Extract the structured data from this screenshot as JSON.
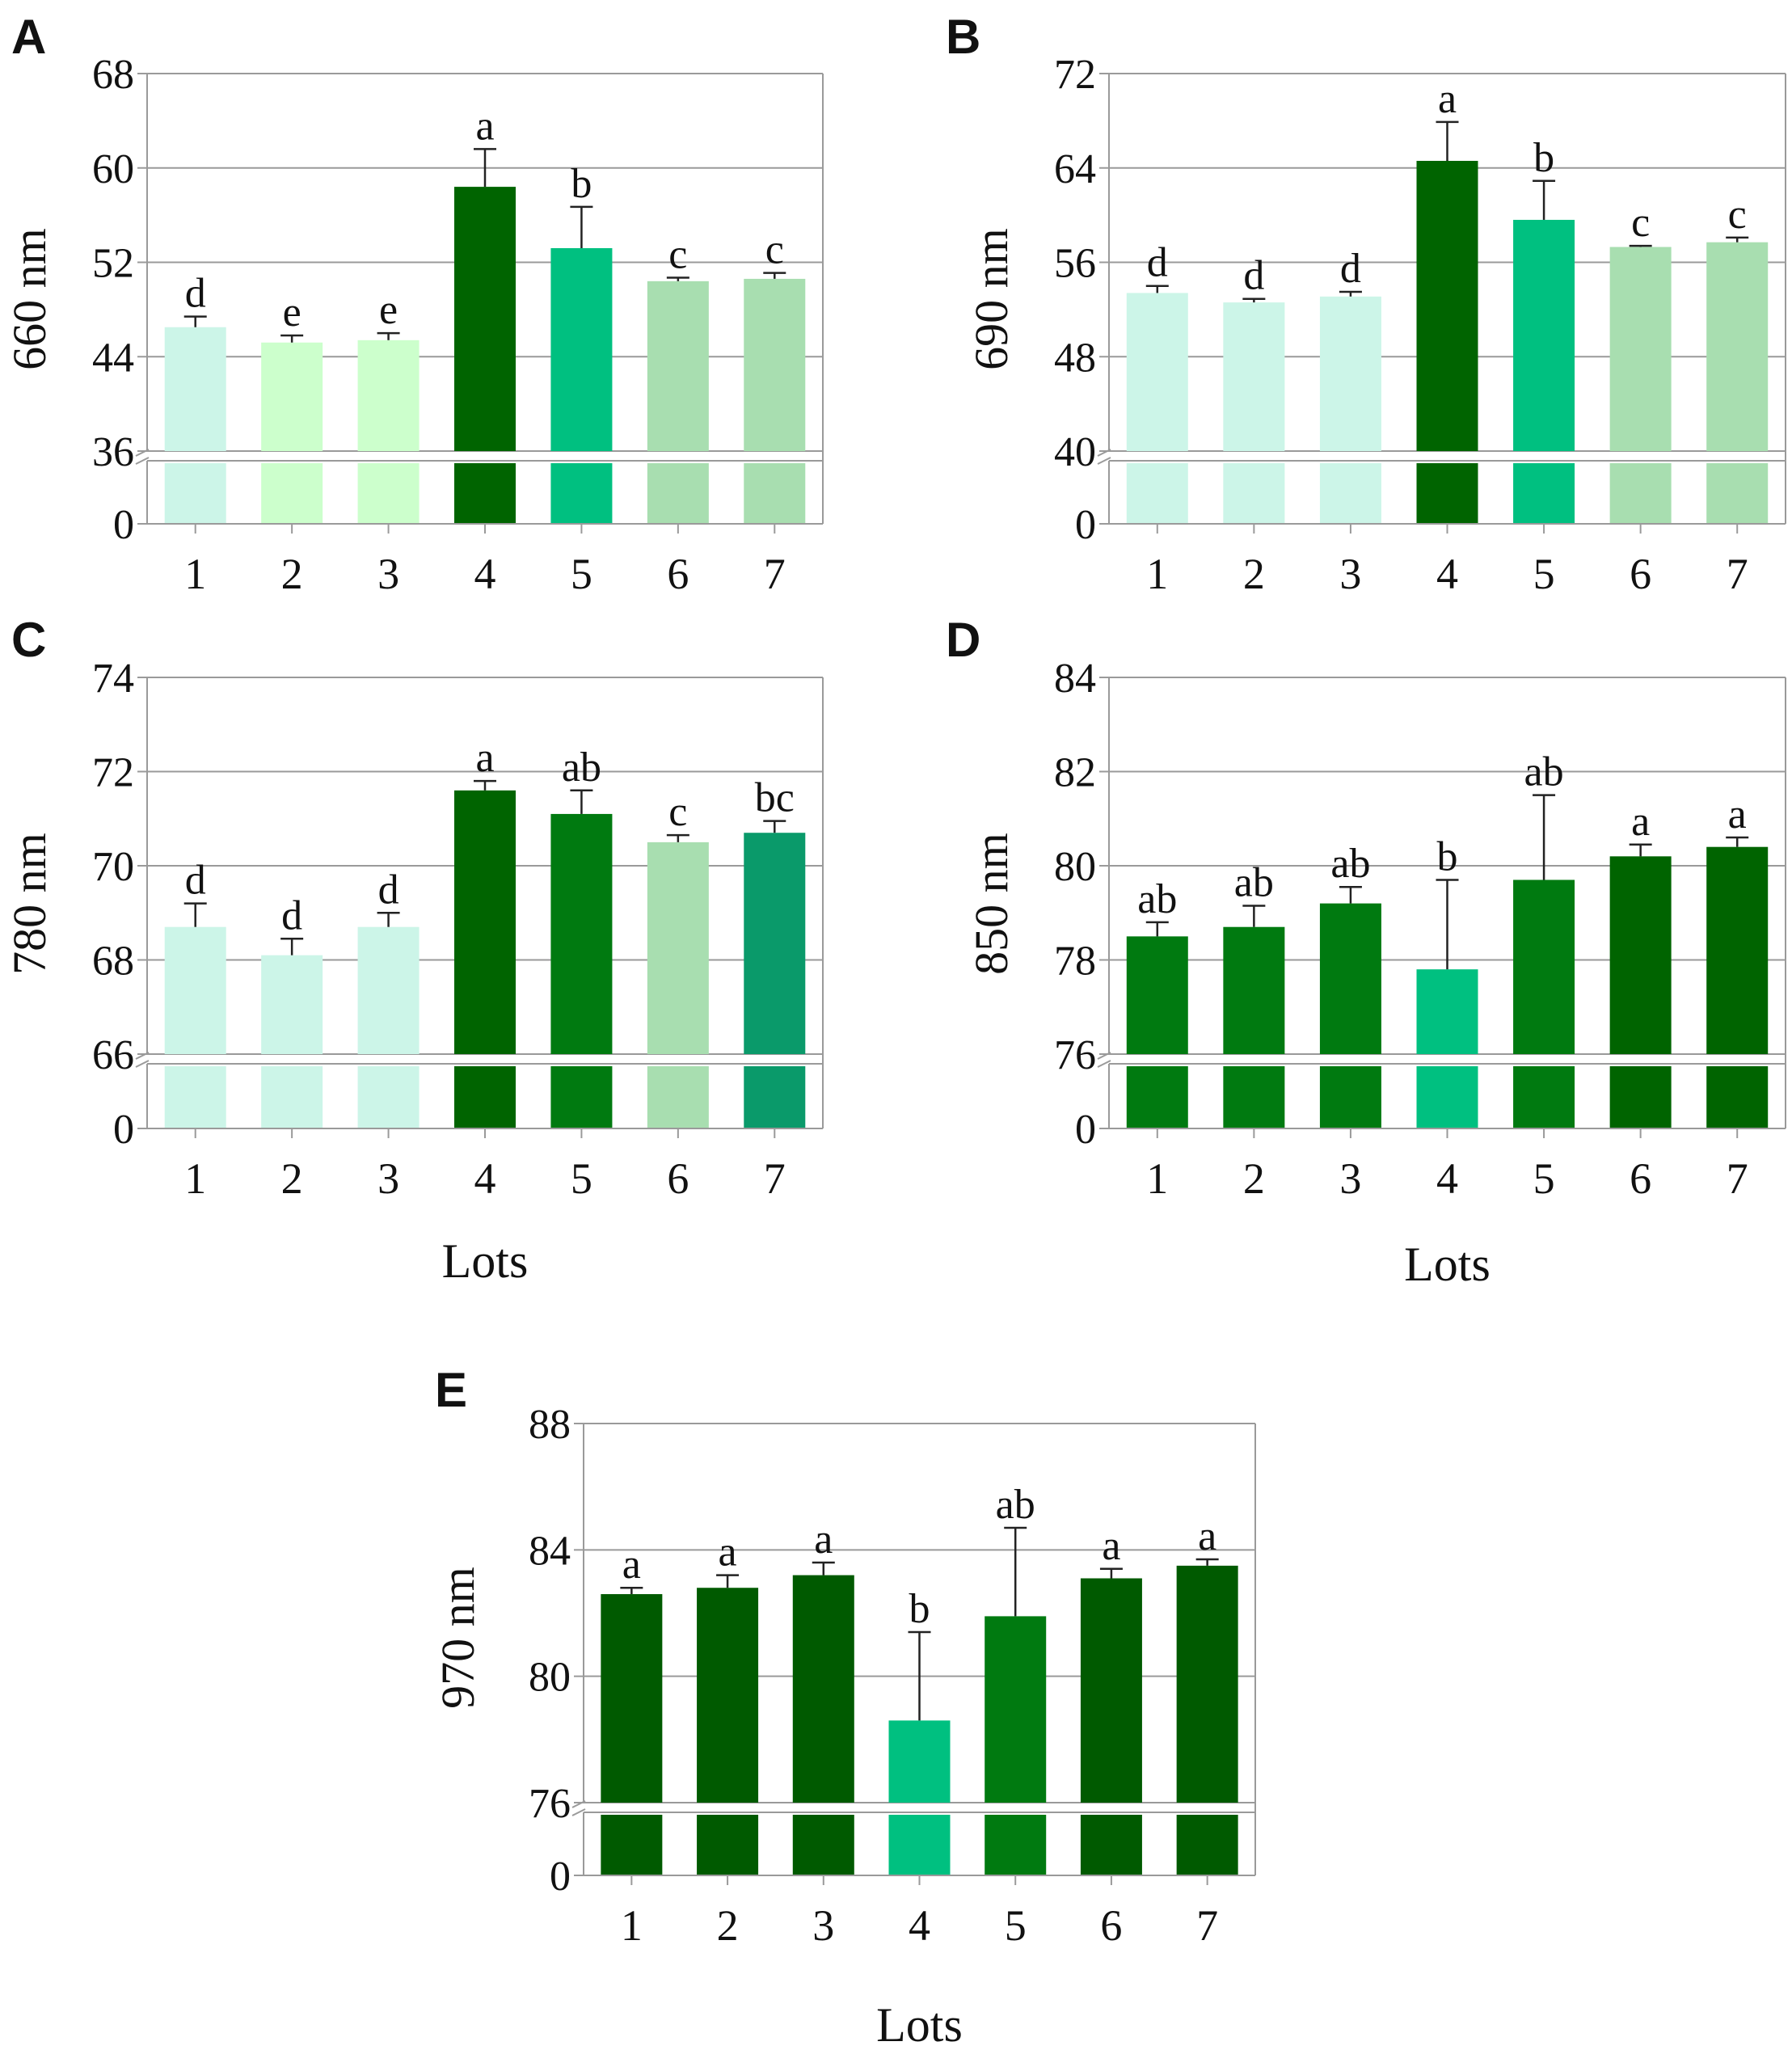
{
  "chart_data": [
    {
      "type": "bar",
      "panel": "A",
      "ylabel": "660 nm",
      "xlabel": "",
      "categories": [
        "1",
        "2",
        "3",
        "4",
        "5",
        "6",
        "7"
      ],
      "values": [
        46.5,
        45.2,
        45.4,
        58.4,
        53.2,
        50.4,
        50.6
      ],
      "errors": [
        0.9,
        0.6,
        0.6,
        3.2,
        3.5,
        0.3,
        0.5
      ],
      "letters": [
        "d",
        "e",
        "e",
        "a",
        "b",
        "c",
        "c"
      ],
      "colors": [
        "#ccf5e8",
        "#ccffcc",
        "#ccffcc",
        "#006400",
        "#00c080",
        "#a8deb0",
        "#a8deb0"
      ],
      "yticks": [
        36,
        44,
        52,
        60,
        68
      ],
      "ylim": [
        36,
        68
      ],
      "y_break_label": "0",
      "grid": true
    },
    {
      "type": "bar",
      "panel": "B",
      "ylabel": "690 nm",
      "xlabel": "",
      "categories": [
        "1",
        "2",
        "3",
        "4",
        "5",
        "6",
        "7"
      ],
      "values": [
        53.4,
        52.6,
        53.1,
        64.6,
        59.6,
        57.3,
        57.7
      ],
      "errors": [
        0.6,
        0.3,
        0.4,
        3.3,
        3.3,
        0.1,
        0.4
      ],
      "letters": [
        "d",
        "d",
        "d",
        "a",
        "b",
        "c",
        "c"
      ],
      "colors": [
        "#ccf5e8",
        "#ccf5e8",
        "#ccf5e8",
        "#006400",
        "#00c080",
        "#a8deb0",
        "#a8deb0"
      ],
      "yticks": [
        40,
        48,
        56,
        64,
        72
      ],
      "ylim": [
        40,
        72
      ],
      "y_break_label": "0",
      "grid": true
    },
    {
      "type": "bar",
      "panel": "C",
      "ylabel": "780 nm",
      "xlabel": "Lots",
      "categories": [
        "1",
        "2",
        "3",
        "4",
        "5",
        "6",
        "7"
      ],
      "values": [
        68.7,
        68.1,
        68.7,
        71.6,
        71.1,
        70.5,
        70.7
      ],
      "errors": [
        0.5,
        0.35,
        0.3,
        0.2,
        0.5,
        0.15,
        0.25
      ],
      "letters": [
        "d",
        "d",
        "d",
        "a",
        "ab",
        "c",
        "bc"
      ],
      "colors": [
        "#ccf5e8",
        "#ccf5e8",
        "#ccf5e8",
        "#006400",
        "#007a10",
        "#a8deb0",
        "#0a9a6a"
      ],
      "yticks": [
        66,
        68,
        70,
        72,
        74
      ],
      "ylim": [
        66,
        74
      ],
      "y_break_label": "0",
      "grid": true
    },
    {
      "type": "bar",
      "panel": "D",
      "ylabel": "850 nm",
      "xlabel": "Lots",
      "categories": [
        "1",
        "2",
        "3",
        "4",
        "5",
        "6",
        "7"
      ],
      "values": [
        78.5,
        78.7,
        79.2,
        77.8,
        79.7,
        80.2,
        80.4
      ],
      "errors": [
        0.3,
        0.45,
        0.35,
        1.9,
        1.8,
        0.25,
        0.2
      ],
      "letters": [
        "ab",
        "ab",
        "ab",
        "b",
        "ab",
        "a",
        "a"
      ],
      "colors": [
        "#007a10",
        "#007a10",
        "#007a10",
        "#00c080",
        "#007a10",
        "#006400",
        "#006400"
      ],
      "yticks": [
        76,
        78,
        80,
        82,
        84
      ],
      "ylim": [
        76,
        84
      ],
      "y_break_label": "0",
      "grid": true
    },
    {
      "type": "bar",
      "panel": "E",
      "ylabel": "970 nm",
      "xlabel": "Lots",
      "categories": [
        "1",
        "2",
        "3",
        "4",
        "5",
        "6",
        "7"
      ],
      "values": [
        82.6,
        82.8,
        83.2,
        78.6,
        81.9,
        83.1,
        83.5
      ],
      "errors": [
        0.2,
        0.4,
        0.4,
        2.8,
        2.8,
        0.3,
        0.2
      ],
      "letters": [
        "a",
        "a",
        "a",
        "b",
        "ab",
        "a",
        "a"
      ],
      "colors": [
        "#005a00",
        "#005a00",
        "#005a00",
        "#00c080",
        "#007a10",
        "#005a00",
        "#005a00"
      ],
      "yticks": [
        76,
        80,
        84,
        88
      ],
      "ylim": [
        76,
        88
      ],
      "y_break_label": "0",
      "grid": true
    }
  ]
}
